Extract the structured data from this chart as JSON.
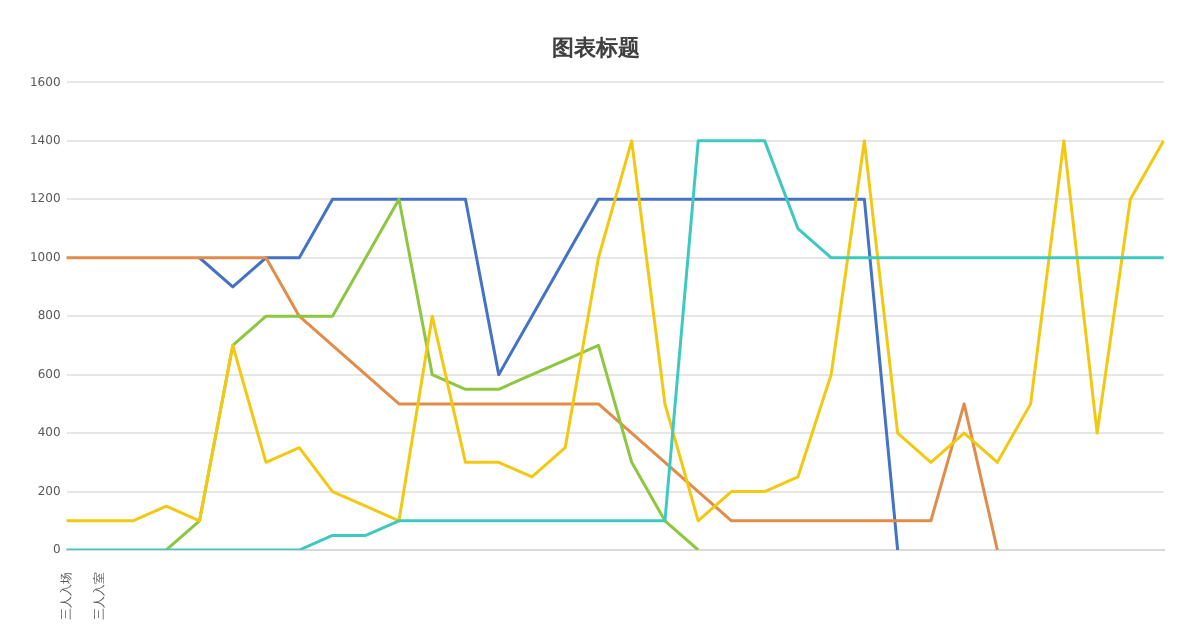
{
  "chart_data": {
    "type": "line",
    "title": "图表标题",
    "categories": [
      "三人入场",
      "三人入室",
      null,
      null,
      null,
      null,
      null,
      null,
      null,
      null,
      null,
      null,
      null,
      null,
      null,
      null,
      null,
      null,
      null,
      null,
      null,
      null,
      null,
      null,
      null,
      null,
      null,
      null,
      null,
      null,
      null,
      null,
      null,
      null
    ],
    "series": [
      {
        "color": "#4472c4",
        "values": [
          null,
          null,
          null,
          null,
          1000,
          900,
          1000,
          1000,
          1200,
          1200,
          1200,
          1200,
          1200,
          600,
          800,
          1000,
          1200,
          1200,
          1200,
          1200,
          1200,
          1200,
          1200,
          1200,
          1200,
          0,
          null,
          null,
          null,
          null,
          null,
          null,
          null,
          null
        ]
      },
      {
        "color": "#e08c4a",
        "values": [
          1000,
          1000,
          1000,
          1000,
          1000,
          1000,
          1000,
          800,
          700,
          600,
          500,
          500,
          500,
          500,
          500,
          500,
          500,
          400,
          300,
          200,
          100,
          100,
          100,
          100,
          100,
          100,
          100,
          500,
          0,
          null,
          null,
          null,
          null,
          null
        ]
      },
      {
        "color": "#8dc63f",
        "values": [
          null,
          null,
          null,
          0,
          100,
          700,
          800,
          800,
          800,
          1000,
          1200,
          600,
          550,
          550,
          600,
          650,
          700,
          300,
          100,
          0,
          null,
          null,
          null,
          null,
          null,
          null,
          null,
          null,
          null,
          null,
          null,
          null,
          null,
          null
        ]
      },
      {
        "color": "#f2c811",
        "values": [
          100,
          100,
          100,
          150,
          100,
          700,
          300,
          350,
          200,
          150,
          100,
          800,
          300,
          300,
          250,
          350,
          1000,
          1400,
          500,
          100,
          200,
          200,
          250,
          600,
          1400,
          400,
          300,
          400,
          300,
          500,
          1400,
          400,
          1200,
          1400
        ]
      },
      {
        "color": "#3ec9c0",
        "values": [
          0,
          0,
          0,
          0,
          0,
          0,
          0,
          0,
          50,
          50,
          100,
          100,
          100,
          100,
          100,
          100,
          100,
          100,
          100,
          1400,
          1400,
          1400,
          1100,
          1000,
          1000,
          1000,
          1000,
          1000,
          1000,
          1000,
          1000,
          1000,
          1000,
          1000
        ]
      }
    ],
    "ylim": [
      0,
      1600
    ],
    "yticks": [
      0,
      200,
      400,
      600,
      800,
      1000,
      1200,
      1400,
      1600
    ],
    "grid": "y",
    "marker": "none",
    "line_style": "solid",
    "legend": false
  }
}
